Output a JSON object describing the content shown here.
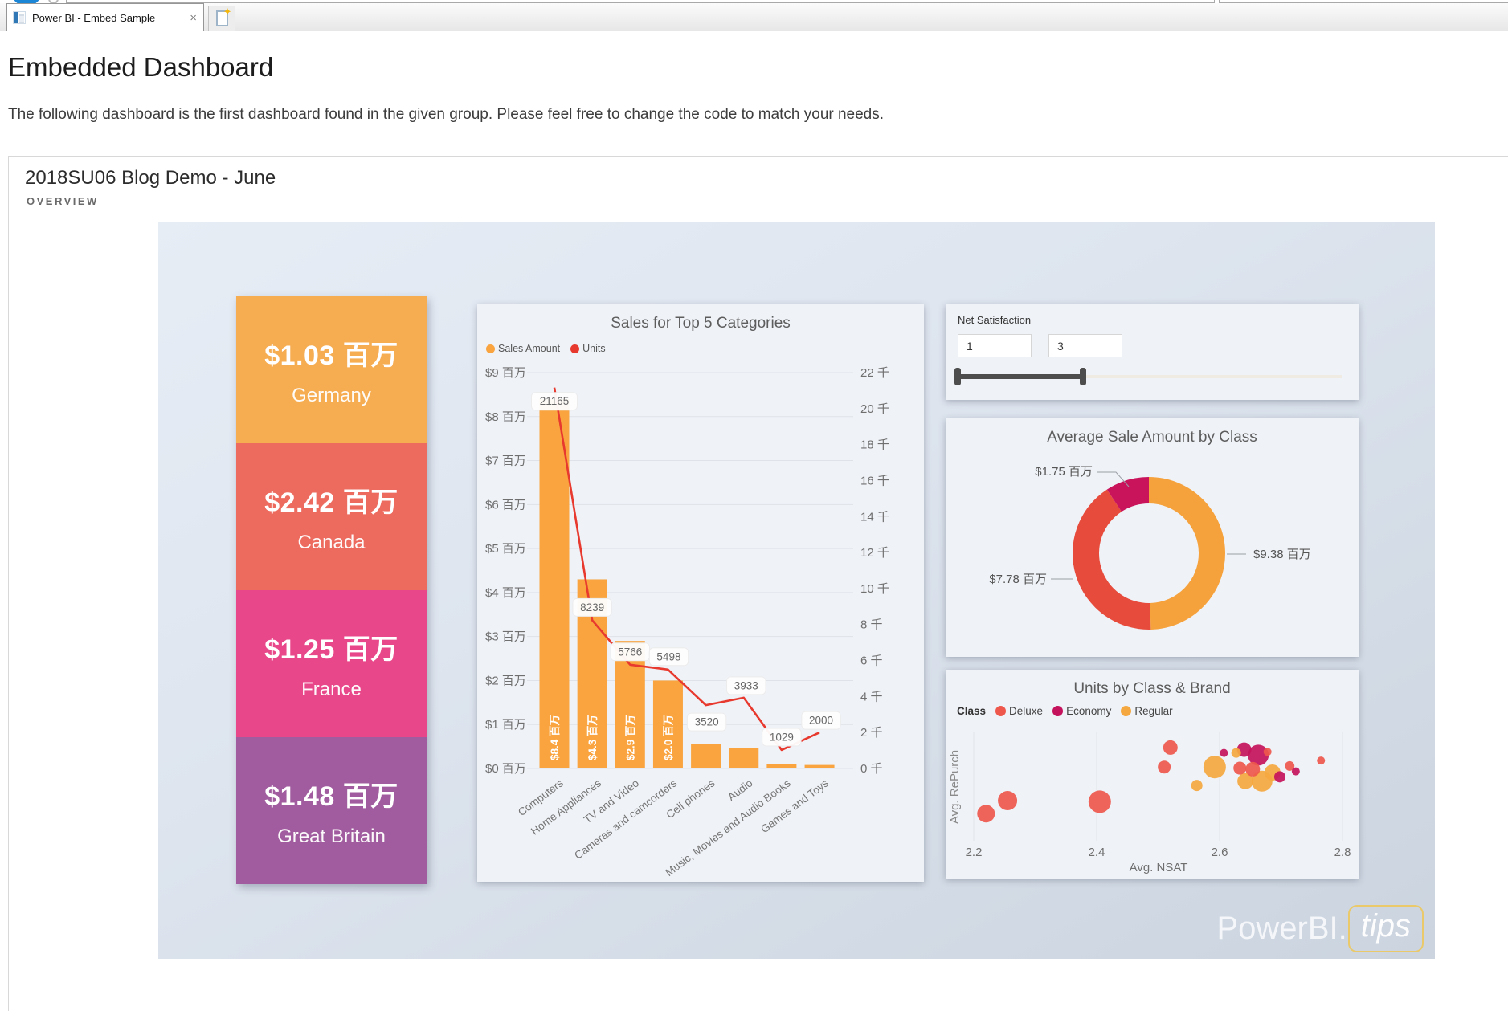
{
  "browser": {
    "tab_title": "Power BI - Embed Sample",
    "close_icon": "×"
  },
  "page": {
    "title": "Embedded Dashboard",
    "description": "The following dashboard is the first dashboard found in the given group. Please feel free to change the code to match your needs."
  },
  "dashboard": {
    "title": "2018SU06 Blog Demo - June",
    "subtitle": "OVERVIEW",
    "watermark_prefix": "PowerBI.",
    "watermark_suffix": "tips"
  },
  "kpi_cards": [
    {
      "value": "$1.03 百万",
      "label": "Germany",
      "color": "#F6AC51"
    },
    {
      "value": "$2.42 百万",
      "label": "Canada",
      "color": "#ED6A5E"
    },
    {
      "value": "$1.25 百万",
      "label": "France",
      "color": "#E8478A"
    },
    {
      "value": "$1.48 百万",
      "label": "Great Britain",
      "color": "#A05C9E"
    }
  ],
  "net_satisfaction": {
    "label": "Net Satisfaction",
    "from_value": "1",
    "to_value": "3",
    "slider": {
      "filled_from_pct": 0,
      "filled_to_pct": 32.6
    }
  },
  "chart_data": [
    {
      "type": "bar",
      "subtype": "combo-bar-line",
      "title": "Sales for Top 5 Categories",
      "categories": [
        "Computers",
        "Home Appliances",
        "TV and Video",
        "Cameras and camcorders",
        "Cell phones",
        "Audio",
        "Music, Movies and Audio Books",
        "Games and Toys"
      ],
      "series": [
        {
          "name": "Sales Amount",
          "type": "bar",
          "axis": "left",
          "color": "#F9A43F",
          "values_millions": [
            8.4,
            4.3,
            2.9,
            2.0,
            0.56,
            0.47,
            0.1,
            0.08
          ],
          "bar_labels": [
            "$8.4 百万",
            "$4.3 百万",
            "$2.9 百万",
            "$2.0 百万",
            "",
            "",
            "",
            ""
          ]
        },
        {
          "name": "Units",
          "type": "line",
          "axis": "right",
          "color": "#E8392E",
          "values": [
            21165,
            8239,
            5766,
            5498,
            3520,
            3933,
            1029,
            2000
          ],
          "point_labels": [
            "21165",
            "8239",
            "5766",
            "5498",
            "3520",
            "3933",
            "1029",
            "2000"
          ]
        }
      ],
      "left_axis": {
        "unit": "百万",
        "min": 0,
        "max": 9,
        "ticks": [
          "$0 百万",
          "$1 百万",
          "$2 百万",
          "$3 百万",
          "$4 百万",
          "$5 百万",
          "$6 百万",
          "$7 百万",
          "$8 百万",
          "$9 百万"
        ]
      },
      "right_axis": {
        "unit": "千",
        "min": 0,
        "max": 22000,
        "ticks": [
          "0 千",
          "2 千",
          "4 千",
          "6 千",
          "8 千",
          "10 千",
          "12 千",
          "14 千",
          "16 千",
          "18 千",
          "20 千",
          "22 千"
        ]
      },
      "grid": true,
      "legend_position": "top-left"
    },
    {
      "type": "pie",
      "subtype": "donut",
      "title": "Average Sale Amount by Class",
      "slices": [
        {
          "name": "Regular",
          "value_millions": 9.38,
          "label": "$9.38 百万",
          "color": "#F6A23C"
        },
        {
          "name": "Deluxe",
          "value_millions": 7.78,
          "label": "$7.78 百万",
          "color": "#E74B3C"
        },
        {
          "name": "Economy",
          "value_millions": 1.75,
          "label": "$1.75 百万",
          "color": "#C9145C"
        }
      ]
    },
    {
      "type": "scatter",
      "title": "Units by Class & Brand",
      "legend_title": "Class",
      "classes": [
        {
          "name": "Deluxe",
          "color": "#EE584C"
        },
        {
          "name": "Economy",
          "color": "#C4135C"
        },
        {
          "name": "Regular",
          "color": "#F5A83F"
        }
      ],
      "xlabel": "Avg. NSAT",
      "ylabel": "Avg. RePurch",
      "x_ticks": [
        "2.2",
        "2.4",
        "2.6",
        "2.8"
      ],
      "x_range": [
        2.2,
        2.8
      ],
      "points": [
        {
          "x": 2.22,
          "y_frac": 0.25,
          "r": 11,
          "class": "Deluxe"
        },
        {
          "x": 2.255,
          "y_frac": 0.37,
          "r": 12,
          "class": "Deluxe"
        },
        {
          "x": 2.405,
          "y_frac": 0.36,
          "r": 14,
          "class": "Deluxe"
        },
        {
          "x": 2.51,
          "y_frac": 0.68,
          "r": 8,
          "class": "Deluxe"
        },
        {
          "x": 2.52,
          "y_frac": 0.86,
          "r": 9,
          "class": "Deluxe"
        },
        {
          "x": 2.563,
          "y_frac": 0.51,
          "r": 7,
          "class": "Regular"
        },
        {
          "x": 2.592,
          "y_frac": 0.68,
          "r": 14,
          "class": "Regular"
        },
        {
          "x": 2.607,
          "y_frac": 0.81,
          "r": 5,
          "class": "Economy"
        },
        {
          "x": 2.627,
          "y_frac": 0.81,
          "r": 6,
          "class": "Regular"
        },
        {
          "x": 2.633,
          "y_frac": 0.67,
          "r": 8,
          "class": "Deluxe"
        },
        {
          "x": 2.64,
          "y_frac": 0.84,
          "r": 9,
          "class": "Economy"
        },
        {
          "x": 2.642,
          "y_frac": 0.55,
          "r": 10,
          "class": "Regular"
        },
        {
          "x": 2.654,
          "y_frac": 0.66,
          "r": 9,
          "class": "Deluxe"
        },
        {
          "x": 2.663,
          "y_frac": 0.79,
          "r": 13,
          "class": "Economy"
        },
        {
          "x": 2.669,
          "y_frac": 0.55,
          "r": 13,
          "class": "Regular"
        },
        {
          "x": 2.678,
          "y_frac": 0.82,
          "r": 5,
          "class": "Deluxe"
        },
        {
          "x": 2.686,
          "y_frac": 0.63,
          "r": 10,
          "class": "Regular"
        },
        {
          "x": 2.698,
          "y_frac": 0.59,
          "r": 7,
          "class": "Economy"
        },
        {
          "x": 2.714,
          "y_frac": 0.69,
          "r": 6,
          "class": "Deluxe"
        },
        {
          "x": 2.724,
          "y_frac": 0.64,
          "r": 5,
          "class": "Economy"
        },
        {
          "x": 2.765,
          "y_frac": 0.74,
          "r": 5,
          "class": "Deluxe"
        }
      ]
    }
  ]
}
